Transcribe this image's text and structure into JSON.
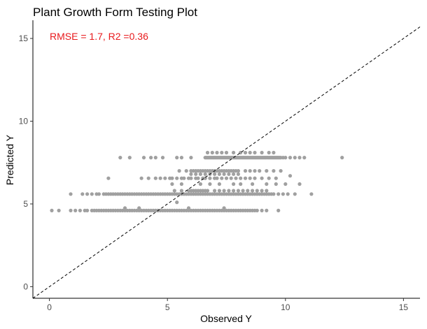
{
  "chart_data": {
    "type": "scatter",
    "title": "Plant Growth Form Testing Plot",
    "annotation": "RMSE = 1.7, R2 =0.36",
    "xlabel": "Observed Y",
    "ylabel": "Predicted Y",
    "xlim": [
      -0.7,
      15.7
    ],
    "ylim": [
      -0.7,
      16.1
    ],
    "x_ticks": [
      0,
      5,
      10,
      15
    ],
    "y_ticks": [
      0,
      5,
      10,
      15
    ],
    "reference_line": "y = x",
    "grid": false,
    "colors": {
      "points": "#a0a0a0",
      "annotation": "#e8191c",
      "line": "#000000"
    },
    "point_groups": [
      {
        "y": 7.8,
        "x": [
          3.0,
          3.4,
          4.0,
          4.3,
          4.5,
          4.8,
          5.4,
          5.6,
          6.0,
          6.6,
          6.65,
          6.7,
          6.75,
          6.8,
          6.85,
          6.9,
          6.95,
          7.0,
          7.05,
          7.1,
          7.15,
          7.2,
          7.25,
          7.3,
          7.35,
          7.4,
          7.45,
          7.5,
          7.55,
          7.6,
          7.65,
          7.7,
          7.75,
          7.8,
          7.85,
          7.9,
          7.95,
          8.0,
          8.05,
          8.1,
          8.15,
          8.2,
          8.25,
          8.3,
          8.35,
          8.4,
          8.45,
          8.5,
          8.55,
          8.6,
          8.65,
          8.7,
          8.75,
          8.8,
          8.85,
          8.9,
          8.95,
          9.0,
          9.05,
          9.1,
          9.15,
          9.2,
          9.25,
          9.3,
          9.35,
          9.4,
          9.45,
          9.5,
          9.55,
          9.6,
          9.65,
          9.7,
          9.75,
          9.8,
          9.9,
          10.0,
          10.2,
          10.4,
          10.6,
          10.8,
          12.4
        ]
      },
      {
        "y": 8.1,
        "x": [
          6.7,
          6.9,
          7.1,
          7.3,
          7.5,
          7.8,
          8.1,
          8.3,
          8.5,
          8.7,
          9.0,
          9.3,
          9.5
        ]
      },
      {
        "y": 7.0,
        "x": [
          5.5,
          5.8,
          6.0,
          6.1,
          6.2,
          6.3,
          6.4,
          6.5,
          6.6,
          6.7,
          6.8,
          6.9,
          7.0,
          7.1,
          7.2,
          7.3,
          7.4,
          7.5,
          7.6,
          7.7,
          7.8,
          7.9,
          8.0,
          8.3,
          8.5,
          8.7,
          8.9,
          9.2,
          9.5,
          9.8
        ]
      },
      {
        "y": 6.8,
        "x": [
          6.0,
          6.2,
          6.4,
          6.6,
          6.8,
          7.0,
          7.2,
          7.4,
          7.6,
          7.8,
          8.0
        ]
      },
      {
        "y": 6.55,
        "x": [
          2.5,
          3.9,
          4.2,
          4.5,
          4.7,
          4.9,
          5.1,
          5.2,
          5.4,
          5.6,
          5.7,
          5.9,
          6.0,
          6.2,
          6.3,
          6.5,
          6.6,
          6.8,
          7.0,
          7.1,
          7.3,
          7.5,
          7.7,
          7.9,
          8.1,
          8.3,
          8.5,
          8.7,
          9.0,
          9.3,
          9.6
        ]
      },
      {
        "y": 6.7,
        "x": [
          10.2
        ]
      },
      {
        "y": 6.2,
        "x": [
          5.2,
          5.6,
          6.4,
          6.8,
          7.2,
          7.8,
          8.1,
          8.6,
          9.2,
          9.6,
          10.0,
          10.6
        ]
      },
      {
        "y": 5.8,
        "x": [
          5.3,
          5.6,
          5.9,
          6.0,
          6.1,
          6.2,
          6.3,
          6.4,
          6.5,
          6.6,
          6.7,
          7.0,
          7.2,
          7.4,
          7.6,
          7.8,
          8.0,
          8.2,
          8.4,
          8.6,
          8.8,
          9.0,
          9.2
        ]
      },
      {
        "y": 5.6,
        "x": [
          0.9,
          1.4,
          1.6,
          1.8,
          2.0,
          2.1,
          2.3,
          2.4,
          2.5,
          2.6,
          2.7,
          2.8,
          2.9,
          3.0,
          3.1,
          3.2,
          3.3,
          3.4,
          3.5,
          3.6,
          3.7,
          3.8,
          3.9,
          4.0,
          4.1,
          4.2,
          4.3,
          4.4,
          4.5,
          4.6,
          4.7,
          4.8,
          4.9,
          5.0,
          5.1,
          5.2,
          5.3,
          5.4,
          5.5,
          5.6,
          5.7,
          5.8,
          5.9,
          6.0,
          6.1,
          6.2,
          6.3,
          6.4,
          6.5,
          6.6,
          6.7,
          6.8,
          6.9,
          7.0,
          7.1,
          7.2,
          7.3,
          7.4,
          7.5,
          7.6,
          7.7,
          7.8,
          7.9,
          8.0,
          8.1,
          8.2,
          8.3,
          8.4,
          8.5,
          8.6,
          8.7,
          8.8,
          8.9,
          9.0,
          9.1,
          9.2,
          9.3,
          9.4,
          9.5,
          9.7,
          9.9,
          10.1,
          10.4,
          11.1
        ]
      },
      {
        "y": 5.1,
        "x": [
          5.4
        ]
      },
      {
        "y": 4.75,
        "x": [
          3.2,
          3.8,
          5.9,
          7.4
        ]
      },
      {
        "y": 4.6,
        "x": [
          0.1,
          0.4,
          0.9,
          1.1,
          1.3,
          1.5,
          1.6,
          1.8,
          1.9,
          2.0,
          2.1,
          2.2,
          2.3,
          2.4,
          2.5,
          2.6,
          2.7,
          2.8,
          2.9,
          3.0,
          3.1,
          3.2,
          3.3,
          3.4,
          3.5,
          3.6,
          3.7,
          3.8,
          3.9,
          4.0,
          4.1,
          4.2,
          4.3,
          4.4,
          4.5,
          4.6,
          4.7,
          4.8,
          4.9,
          5.0,
          5.1,
          5.2,
          5.3,
          5.4,
          5.5,
          5.6,
          5.7,
          5.8,
          5.9,
          6.0,
          6.1,
          6.2,
          6.3,
          6.4,
          6.5,
          6.6,
          6.7,
          6.8,
          6.9,
          7.0,
          7.1,
          7.2,
          7.3,
          7.4,
          7.5,
          7.6,
          7.7,
          7.8,
          7.9,
          8.0,
          8.1,
          8.2,
          8.3,
          8.4,
          8.5,
          8.6,
          8.7,
          8.8,
          9.0,
          9.2,
          9.7
        ]
      }
    ]
  }
}
